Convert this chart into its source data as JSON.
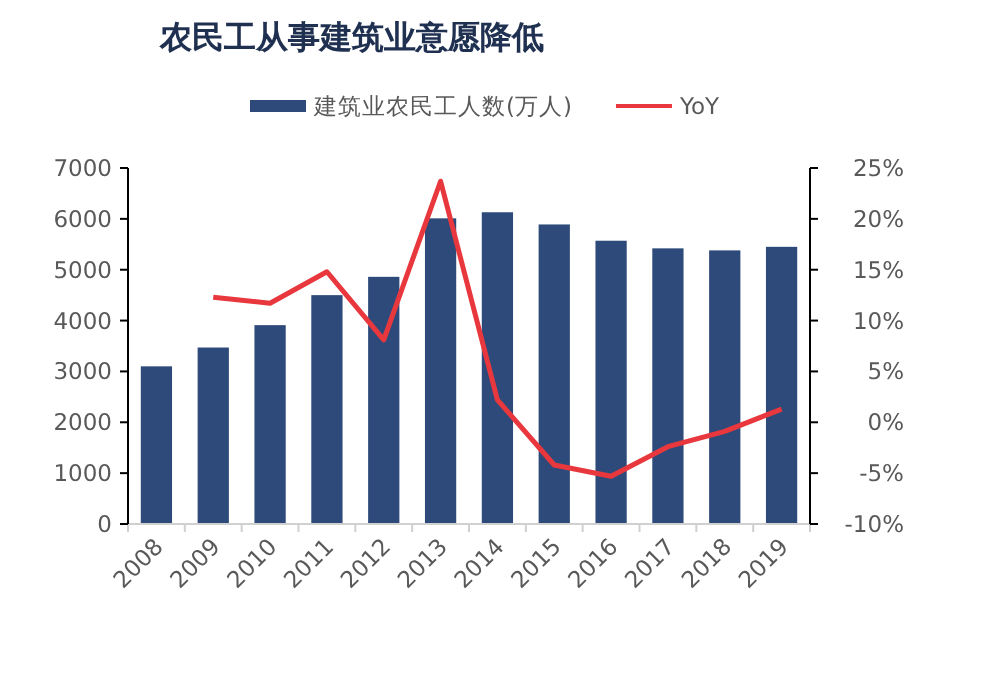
{
  "chart_data": {
    "type": "bar",
    "title": "农民工从事建筑业意愿降低",
    "categories": [
      "2008",
      "2009",
      "2010",
      "2011",
      "2012",
      "2013",
      "2014",
      "2015",
      "2016",
      "2017",
      "2018",
      "2019"
    ],
    "series": [
      {
        "name": "建筑业农民工人数(万人)",
        "color": "#2e4a7a",
        "values": [
          3100,
          3470,
          3910,
          4500,
          4860,
          6010,
          6130,
          5890,
          5570,
          5420,
          5380,
          5450
        ]
      },
      {
        "name": "YoY",
        "type": "line",
        "axis": "y2",
        "color": "#e8383d",
        "values": [
          null,
          12.3,
          11.7,
          14.8,
          8.1,
          23.7,
          2.2,
          -4.2,
          -5.3,
          -2.4,
          -0.9,
          1.3
        ]
      }
    ],
    "ylim": [
      0,
      7000
    ],
    "yticks": [
      0,
      1000,
      2000,
      3000,
      4000,
      5000,
      6000,
      7000
    ],
    "y2lim": [
      -10,
      25
    ],
    "y2ticks": [
      {
        "value": -10,
        "label": "-10%"
      },
      {
        "value": -5,
        "label": "-5%"
      },
      {
        "value": 0,
        "label": "0%"
      },
      {
        "value": 5,
        "label": "5%"
      },
      {
        "value": 10,
        "label": "10%"
      },
      {
        "value": 15,
        "label": "15%"
      },
      {
        "value": 20,
        "label": "20%"
      },
      {
        "value": 25,
        "label": "25%"
      }
    ],
    "legend": "top",
    "grid": false,
    "marker": "none",
    "line_style": "solid"
  }
}
